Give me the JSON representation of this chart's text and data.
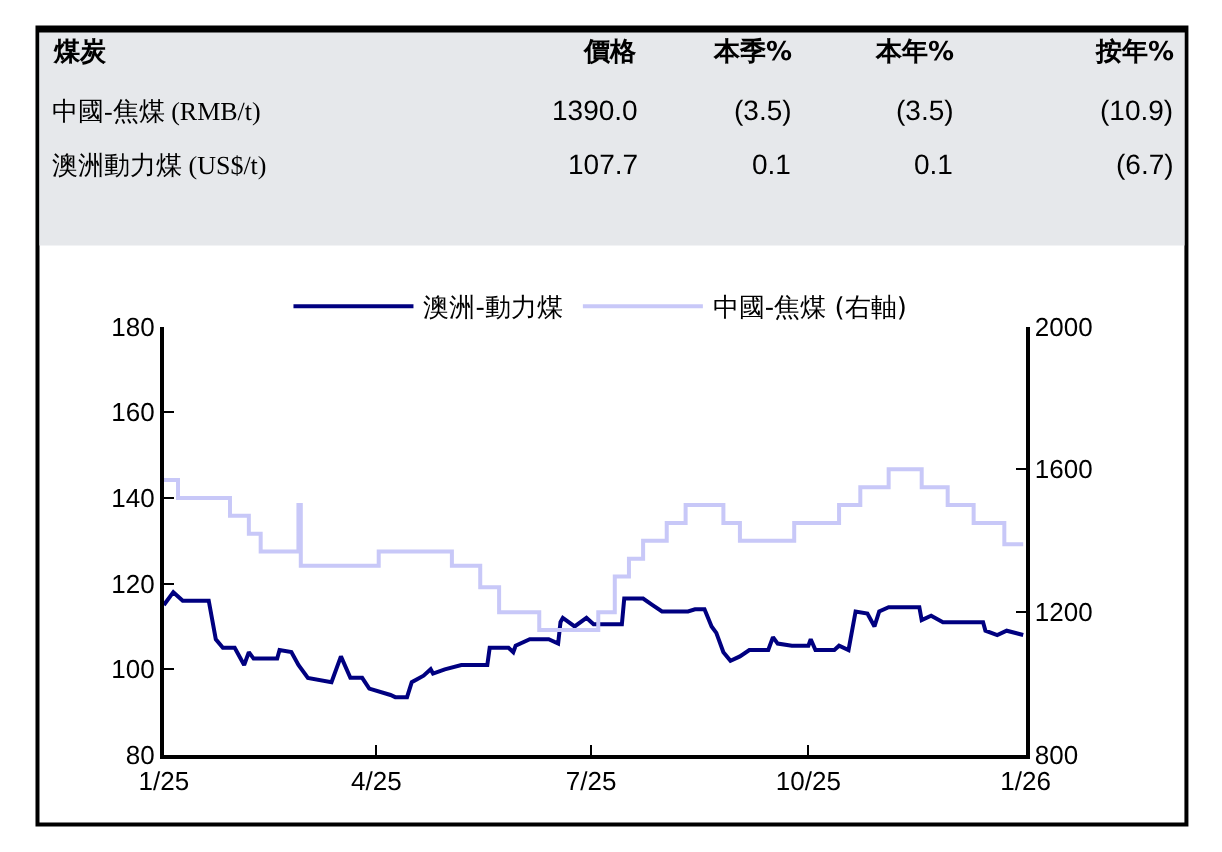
{
  "chart_data": [
    {
      "type": "other",
      "title": "煤炭",
      "categories": [
        "價格",
        "本季%",
        "本年%",
        "按年%"
      ],
      "y_categories": [
        "中國-焦煤 (RMB/t)",
        "澳洲動力煤 (US$/t)"
      ],
      "cell_labels": [
        [
          "1390.0",
          "(3.5)",
          "(3.5)",
          "(10.9)"
        ],
        [
          "107.7",
          "0.1",
          "0.1",
          "(6.7)"
        ]
      ]
    },
    {
      "type": "line",
      "legend": "top",
      "xlim": [
        "2025-01-01",
        "2026-01-01"
      ],
      "xticks": [
        {
          "value": "2025-01-01",
          "label": "1/25"
        },
        {
          "value": "2025-04-01",
          "label": "4/25"
        },
        {
          "value": "2025-07-01",
          "label": "7/25"
        },
        {
          "value": "2025-10-01",
          "label": "10/25"
        },
        {
          "value": "2026-01-01",
          "label": "1/26"
        }
      ],
      "ylim": [
        80,
        180
      ],
      "yticks": [
        80,
        100,
        120,
        140,
        160,
        180
      ],
      "y2lim": [
        800,
        2000
      ],
      "y2ticks": [
        800,
        1200,
        1600,
        2000
      ],
      "series": [
        {
          "name": "澳洲-動力煤",
          "color": "#000080",
          "type": "line",
          "x": [
            "2025-01-01",
            "2025-01-05",
            "2025-01-09",
            "2025-01-20",
            "2025-01-23",
            "2025-01-26",
            "2025-01-31",
            "2025-02-04",
            "2025-02-06",
            "2025-02-08",
            "2025-02-18",
            "2025-02-19",
            "2025-02-24",
            "2025-02-27",
            "2025-03-03",
            "2025-03-13",
            "2025-03-17",
            "2025-03-21",
            "2025-03-26",
            "2025-03-29",
            "2025-04-07",
            "2025-04-09",
            "2025-04-14",
            "2025-04-16",
            "2025-04-21",
            "2025-04-24",
            "2025-04-25",
            "2025-04-30",
            "2025-05-07",
            "2025-05-18",
            "2025-05-19",
            "2025-05-27",
            "2025-05-29",
            "2025-05-30",
            "2025-06-05",
            "2025-06-13",
            "2025-06-17",
            "2025-06-18",
            "2025-06-19",
            "2025-06-24",
            "2025-06-29",
            "2025-07-02",
            "2025-07-14",
            "2025-07-15",
            "2025-07-23",
            "2025-07-27",
            "2025-07-31",
            "2025-08-11",
            "2025-08-14",
            "2025-08-18",
            "2025-08-21",
            "2025-08-23",
            "2025-08-26",
            "2025-08-29",
            "2025-09-02",
            "2025-09-06",
            "2025-09-14",
            "2025-09-16",
            "2025-09-18",
            "2025-09-24",
            "2025-10-01",
            "2025-10-02",
            "2025-10-04",
            "2025-10-12",
            "2025-10-14",
            "2025-10-18",
            "2025-10-21",
            "2025-10-26",
            "2025-10-29",
            "2025-10-31",
            "2025-11-04",
            "2025-11-17",
            "2025-11-18",
            "2025-11-22",
            "2025-11-27",
            "2025-12-14",
            "2025-12-15",
            "2025-12-20",
            "2025-12-24",
            "2025-12-31"
          ],
          "values": [
            115,
            118,
            116,
            116,
            107,
            105,
            105,
            101,
            104,
            102.5,
            102.5,
            104.5,
            104,
            101,
            98,
            97,
            103,
            98,
            98,
            95.5,
            94,
            93.5,
            93.5,
            97,
            98.5,
            100,
            99,
            100,
            101,
            101,
            105,
            105,
            104,
            105.5,
            107,
            107,
            106,
            111,
            112,
            110,
            112,
            110.5,
            110.5,
            116.5,
            116.5,
            115,
            113.5,
            113.5,
            114,
            114,
            110,
            108.5,
            104,
            102,
            103,
            104.5,
            104.5,
            107.5,
            106,
            105.5,
            105.5,
            107,
            104.5,
            104.5,
            105.5,
            104.5,
            113.5,
            113,
            110,
            113.5,
            114.5,
            114.5,
            111.5,
            112.5,
            111,
            111,
            109,
            108,
            109,
            108
          ]
        },
        {
          "name": "中國-焦煤 (右軸)",
          "color": "#c8c8f8",
          "type": "step",
          "axis": "y2",
          "x": [
            "2025-01-01",
            "2025-01-07",
            "2025-01-29",
            "2025-02-06",
            "2025-02-11",
            "2025-02-27",
            "2025-02-28",
            "2025-04-02",
            "2025-05-03",
            "2025-05-15",
            "2025-05-23",
            "2025-06-09",
            "2025-07-04",
            "2025-07-11",
            "2025-07-17",
            "2025-07-23",
            "2025-08-02",
            "2025-08-10",
            "2025-08-26",
            "2025-09-02",
            "2025-09-25",
            "2025-10-14",
            "2025-10-23",
            "2025-11-04",
            "2025-11-18",
            "2025-11-29",
            "2025-12-10",
            "2025-12-23",
            "2025-12-31"
          ],
          "values": [
            1570,
            1520,
            1470,
            1420,
            1370,
            1500,
            1330,
            1370,
            1330,
            1270,
            1200,
            1150,
            1200,
            1300,
            1350,
            1400,
            1450,
            1500,
            1450,
            1400,
            1450,
            1500,
            1550,
            1600,
            1550,
            1500,
            1450,
            1390,
            1390
          ]
        }
      ]
    }
  ]
}
